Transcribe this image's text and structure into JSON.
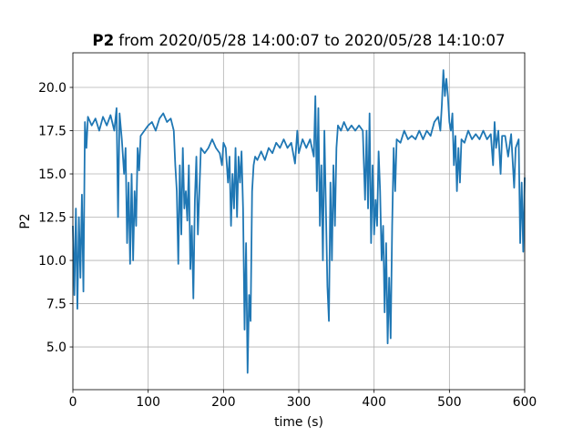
{
  "chart_data": {
    "type": "line",
    "title_bold": "P2",
    "title": "from 2020/05/28 14:00:07 to 2020/05/28 14:10:07",
    "xlabel": "time (s)",
    "ylabel": "P2",
    "color": "#1f77b4",
    "grid": true,
    "xlim": [
      0,
      600
    ],
    "ylim": [
      2.53,
      22.0
    ],
    "xticks": [
      0,
      100,
      200,
      300,
      400,
      500,
      600
    ],
    "yticks": [
      {
        "value": 5,
        "label": "5.0"
      },
      {
        "value": 7.5,
        "label": "7.5"
      },
      {
        "value": 10,
        "label": "10.0"
      },
      {
        "value": 12.5,
        "label": "12.5"
      },
      {
        "value": 15,
        "label": "15.0"
      },
      {
        "value": 17.5,
        "label": "17.5"
      },
      {
        "value": 20,
        "label": "20.0"
      }
    ],
    "x": [
      0,
      2,
      4,
      6,
      8,
      10,
      12,
      14,
      16,
      18,
      20,
      25,
      30,
      35,
      40,
      45,
      50,
      55,
      58,
      60,
      62,
      65,
      68,
      70,
      72,
      74,
      76,
      78,
      80,
      82,
      84,
      86,
      88,
      90,
      95,
      100,
      105,
      110,
      115,
      120,
      125,
      130,
      134,
      136,
      138,
      140,
      142,
      144,
      146,
      148,
      150,
      152,
      154,
      156,
      158,
      160,
      162,
      164,
      166,
      168,
      170,
      175,
      180,
      185,
      190,
      195,
      198,
      200,
      203,
      206,
      208,
      210,
      212,
      214,
      216,
      218,
      220,
      222,
      224,
      226,
      228,
      230,
      232,
      234,
      236,
      238,
      240,
      242,
      245,
      250,
      255,
      260,
      265,
      270,
      275,
      280,
      285,
      290,
      295,
      298,
      300,
      305,
      310,
      315,
      320,
      322,
      324,
      326,
      328,
      330,
      332,
      334,
      336,
      338,
      340,
      342,
      344,
      346,
      348,
      350,
      352,
      356,
      360,
      365,
      370,
      375,
      380,
      385,
      388,
      390,
      392,
      394,
      396,
      398,
      400,
      402,
      404,
      406,
      408,
      410,
      412,
      414,
      416,
      418,
      420,
      422,
      424,
      426,
      428,
      430,
      435,
      440,
      445,
      450,
      455,
      460,
      465,
      470,
      475,
      480,
      485,
      488,
      490,
      492,
      494,
      496,
      498,
      500,
      502,
      504,
      506,
      508,
      510,
      512,
      514,
      516,
      520,
      525,
      530,
      535,
      540,
      545,
      550,
      555,
      558,
      560,
      562,
      565,
      568,
      570,
      574,
      578,
      582,
      586,
      588,
      592,
      594,
      596,
      598,
      600
    ],
    "values": [
      12,
      8,
      13,
      7.2,
      12.5,
      9,
      13.8,
      8.2,
      18,
      16.5,
      18.3,
      17.8,
      18.2,
      17.5,
      18.3,
      17.8,
      18.4,
      17.5,
      18.8,
      12.5,
      18.5,
      17,
      15,
      16.5,
      11,
      14.5,
      9.8,
      15,
      10,
      14,
      12,
      16.5,
      15.2,
      17.2,
      17.5,
      17.8,
      18,
      17.5,
      18.2,
      18.5,
      18,
      18.2,
      17.5,
      15.5,
      14,
      9.8,
      15.5,
      11.5,
      16.5,
      13,
      14,
      12.3,
      15.5,
      9.5,
      12,
      7.8,
      13.5,
      16,
      11.5,
      14,
      16.5,
      16.2,
      16.5,
      17,
      16.5,
      16.2,
      15.5,
      16.8,
      16.5,
      14.5,
      16,
      12,
      15,
      13,
      16.5,
      12.5,
      16,
      14.5,
      16.3,
      13,
      6,
      11,
      3.5,
      8,
      6.5,
      14,
      15.5,
      16,
      15.8,
      16.3,
      15.8,
      16.5,
      16.2,
      16.8,
      16.5,
      17,
      16.5,
      16.8,
      15.6,
      17.5,
      16.2,
      17,
      16.5,
      17,
      16,
      19.5,
      14,
      18.8,
      12,
      15.5,
      10,
      17.5,
      13,
      8.5,
      6.5,
      14.5,
      10,
      15.5,
      12,
      16.5,
      17.8,
      17.5,
      18,
      17.5,
      17.8,
      17.5,
      17.8,
      17.5,
      13.5,
      17.5,
      13,
      18.5,
      11,
      15.5,
      11.5,
      13.5,
      12,
      16.3,
      14,
      10,
      12,
      7,
      11,
      5.2,
      9,
      5.5,
      12,
      16.5,
      14,
      17,
      16.8,
      17.5,
      17,
      17.2,
      17,
      17.5,
      17,
      17.5,
      17.2,
      18,
      18.3,
      17.5,
      19,
      21,
      19.5,
      20.5,
      19.5,
      18,
      17.5,
      18.5,
      15.5,
      17.2,
      14,
      16.5,
      14.5,
      17,
      16.8,
      17.5,
      17,
      17.3,
      17,
      17.5,
      17,
      17.3,
      15.5,
      18,
      16.5,
      17.5,
      15,
      17.2,
      17.2,
      16,
      17.3,
      14.2,
      16.5,
      17,
      11,
      14.5,
      10.5,
      14.8
    ]
  }
}
